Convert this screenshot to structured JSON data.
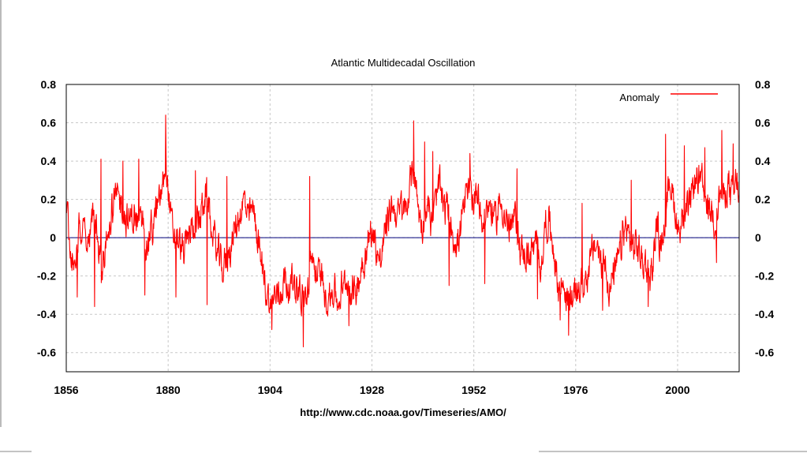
{
  "chart_data": {
    "type": "line",
    "title": "Atlantic Multidecadal Oscillation",
    "source_caption": "http://www.cdc.noaa.gov/Timeseries/AMO/",
    "xlim": [
      1856,
      2014.5
    ],
    "ylim": [
      -0.7,
      0.8
    ],
    "x_ticks": [
      1856,
      1880,
      1904,
      1928,
      1952,
      1976,
      2000
    ],
    "x_tick_labels": [
      "1856",
      "1880",
      "1904",
      "1928",
      "1952",
      "1976",
      "2000"
    ],
    "y_ticks": [
      0.8,
      0.6,
      0.4,
      0.2,
      0,
      -0.2,
      -0.4,
      -0.6
    ],
    "y_tick_labels": [
      "0.8",
      "0.6",
      "0.4",
      "0.2",
      "0",
      "-0.2",
      "-0.4",
      "-0.6"
    ],
    "grid": true,
    "legend_position": "top-right",
    "zero_line_color": "#00007a",
    "series": [
      {
        "name": "Anomaly",
        "color": "#ff0000",
        "anchors": [
          [
            1856,
            0.2
          ],
          [
            1857,
            -0.05
          ],
          [
            1858,
            -0.15
          ],
          [
            1859,
            0.05
          ],
          [
            1860,
            0.1
          ],
          [
            1861,
            -0.05
          ],
          [
            1862,
            0.1
          ],
          [
            1863,
            0.05
          ],
          [
            1864,
            -0.2
          ],
          [
            1865,
            -0.1
          ],
          [
            1866,
            0.0
          ],
          [
            1867,
            0.15
          ],
          [
            1868,
            0.2
          ],
          [
            1869,
            0.2
          ],
          [
            1870,
            0.1
          ],
          [
            1871,
            0.05
          ],
          [
            1872,
            0.1
          ],
          [
            1873,
            0.05
          ],
          [
            1874,
            0.15
          ],
          [
            1875,
            0.0
          ],
          [
            1876,
            0.05
          ],
          [
            1877,
            0.1
          ],
          [
            1878,
            0.2
          ],
          [
            1879,
            0.35
          ],
          [
            1879.5,
            0.45
          ],
          [
            1880,
            0.3
          ],
          [
            1881,
            0.05
          ],
          [
            1882,
            0.0
          ],
          [
            1883,
            -0.05
          ],
          [
            1884,
            -0.05
          ],
          [
            1885,
            0.05
          ],
          [
            1886,
            0.05
          ],
          [
            1887,
            0.1
          ],
          [
            1888,
            0.15
          ],
          [
            1889,
            0.2
          ],
          [
            1890,
            0.1
          ],
          [
            1891,
            -0.05
          ],
          [
            1892,
            -0.1
          ],
          [
            1893,
            -0.15
          ],
          [
            1894,
            -0.1
          ],
          [
            1895,
            -0.05
          ],
          [
            1896,
            0.05
          ],
          [
            1897,
            0.1
          ],
          [
            1898,
            0.15
          ],
          [
            1899,
            0.1
          ],
          [
            1900,
            0.15
          ],
          [
            1901,
            0.05
          ],
          [
            1902,
            -0.1
          ],
          [
            1903,
            -0.25
          ],
          [
            1904,
            -0.35
          ],
          [
            1905,
            -0.3
          ],
          [
            1906,
            -0.25
          ],
          [
            1907,
            -0.2
          ],
          [
            1908,
            -0.2
          ],
          [
            1909,
            -0.2
          ],
          [
            1910,
            -0.25
          ],
          [
            1911,
            -0.3
          ],
          [
            1912,
            -0.35
          ],
          [
            1913,
            -0.3
          ],
          [
            1914,
            -0.1
          ],
          [
            1915,
            -0.15
          ],
          [
            1916,
            -0.2
          ],
          [
            1917,
            -0.3
          ],
          [
            1918,
            -0.3
          ],
          [
            1919,
            -0.25
          ],
          [
            1920,
            -0.35
          ],
          [
            1921,
            -0.3
          ],
          [
            1922,
            -0.25
          ],
          [
            1923,
            -0.3
          ],
          [
            1924,
            -0.3
          ],
          [
            1925,
            -0.2
          ],
          [
            1926,
            -0.1
          ],
          [
            1927,
            0.0
          ],
          [
            1928,
            0.05
          ],
          [
            1929,
            -0.05
          ],
          [
            1930,
            -0.1
          ],
          [
            1931,
            0.05
          ],
          [
            1932,
            0.15
          ],
          [
            1933,
            0.2
          ],
          [
            1934,
            0.1
          ],
          [
            1935,
            0.15
          ],
          [
            1936,
            0.15
          ],
          [
            1937,
            0.25
          ],
          [
            1938,
            0.35
          ],
          [
            1939,
            0.1
          ],
          [
            1940,
            0.05
          ],
          [
            1941,
            0.15
          ],
          [
            1942,
            0.1
          ],
          [
            1943,
            0.2
          ],
          [
            1944,
            0.3
          ],
          [
            1945,
            0.2
          ],
          [
            1946,
            0.15
          ],
          [
            1947,
            0.05
          ],
          [
            1948,
            -0.05
          ],
          [
            1949,
            0.05
          ],
          [
            1950,
            0.15
          ],
          [
            1951,
            0.25
          ],
          [
            1952,
            0.2
          ],
          [
            1953,
            0.25
          ],
          [
            1954,
            0.05
          ],
          [
            1955,
            0.15
          ],
          [
            1956,
            0.15
          ],
          [
            1957,
            0.1
          ],
          [
            1958,
            0.2
          ],
          [
            1959,
            0.15
          ],
          [
            1960,
            0.05
          ],
          [
            1961,
            0.1
          ],
          [
            1962,
            0.1
          ],
          [
            1963,
            -0.05
          ],
          [
            1964,
            -0.1
          ],
          [
            1965,
            -0.1
          ],
          [
            1966,
            -0.1
          ],
          [
            1967,
            -0.05
          ],
          [
            1968,
            -0.1
          ],
          [
            1969,
            0.1
          ],
          [
            1970,
            0.05
          ],
          [
            1971,
            -0.15
          ],
          [
            1972,
            -0.3
          ],
          [
            1973,
            -0.25
          ],
          [
            1974,
            -0.35
          ],
          [
            1975,
            -0.3
          ],
          [
            1976,
            -0.25
          ],
          [
            1977,
            -0.2
          ],
          [
            1978,
            -0.2
          ],
          [
            1979,
            -0.1
          ],
          [
            1980,
            -0.05
          ],
          [
            1981,
            -0.05
          ],
          [
            1982,
            -0.15
          ],
          [
            1983,
            -0.1
          ],
          [
            1984,
            -0.25
          ],
          [
            1985,
            -0.2
          ],
          [
            1986,
            -0.15
          ],
          [
            1987,
            0.0
          ],
          [
            1988,
            0.05
          ],
          [
            1989,
            -0.05
          ],
          [
            1990,
            -0.1
          ],
          [
            1991,
            -0.1
          ],
          [
            1992,
            -0.15
          ],
          [
            1993,
            -0.2
          ],
          [
            1994,
            -0.15
          ],
          [
            1995,
            0.05
          ],
          [
            1996,
            0.0
          ],
          [
            1997,
            0.1
          ],
          [
            1998,
            0.3
          ],
          [
            1999,
            0.2
          ],
          [
            2000,
            0.05
          ],
          [
            2001,
            0.1
          ],
          [
            2002,
            0.15
          ],
          [
            2003,
            0.2
          ],
          [
            2004,
            0.25
          ],
          [
            2005,
            0.3
          ],
          [
            2006,
            0.25
          ],
          [
            2007,
            0.2
          ],
          [
            2008,
            0.15
          ],
          [
            2009,
            0.1
          ],
          [
            2010,
            0.25
          ],
          [
            2011,
            0.2
          ],
          [
            2012,
            0.25
          ],
          [
            2013,
            0.2
          ],
          [
            2014,
            0.3
          ],
          [
            2014.5,
            0.2
          ]
        ],
        "extremes": [
          [
            1858.6,
            -0.31
          ],
          [
            1862.7,
            -0.36
          ],
          [
            1864.2,
            0.41
          ],
          [
            1869.3,
            0.4
          ],
          [
            1873.1,
            0.41
          ],
          [
            1874.5,
            -0.3
          ],
          [
            1879.4,
            0.64
          ],
          [
            1881.8,
            -0.31
          ],
          [
            1886.4,
            0.35
          ],
          [
            1889.2,
            -0.35
          ],
          [
            1893.8,
            0.32
          ],
          [
            1904.4,
            -0.48
          ],
          [
            1911.8,
            -0.57
          ],
          [
            1913.3,
            0.32
          ],
          [
            1922.6,
            -0.46
          ],
          [
            1937.8,
            0.61
          ],
          [
            1940.4,
            0.5
          ],
          [
            1942.3,
            0.45
          ],
          [
            1946.2,
            -0.25
          ],
          [
            1951.1,
            0.44
          ],
          [
            1954.6,
            -0.24
          ],
          [
            1962.2,
            0.36
          ],
          [
            1967.0,
            -0.32
          ],
          [
            1972.3,
            -0.43
          ],
          [
            1974.3,
            -0.51
          ],
          [
            1977.5,
            0.18
          ],
          [
            1982.3,
            -0.38
          ],
          [
            1989.1,
            0.3
          ],
          [
            1993.1,
            -0.36
          ],
          [
            1997.2,
            0.54
          ],
          [
            2001.6,
            0.48
          ],
          [
            2006.4,
            0.47
          ],
          [
            2009.2,
            -0.13
          ],
          [
            2010.4,
            0.56
          ],
          [
            2013.1,
            0.49
          ]
        ]
      }
    ]
  }
}
